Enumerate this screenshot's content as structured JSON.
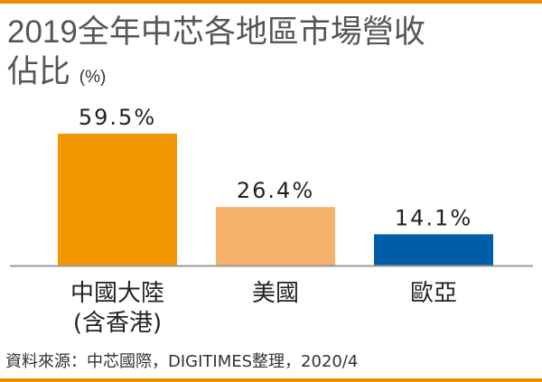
{
  "chart_data": {
    "type": "bar",
    "title_line1": "2019全年中芯各地區市場營收",
    "title_line2": "佔比",
    "unit": "(%)",
    "categories": [
      [
        "中國大陸",
        "(含香港)"
      ],
      [
        "美國"
      ],
      [
        "歐亞"
      ]
    ],
    "values": [
      59.5,
      26.4,
      14.1
    ],
    "data_labels": [
      "59.5%",
      "26.4%",
      "14.1%"
    ],
    "colors": [
      "#f39800",
      "#f5b06c",
      "#005ea8"
    ],
    "ylim": [
      0,
      65
    ],
    "grid": false
  },
  "source": "資料來源：中芯國際，DIGITIMES整理，2020/4",
  "accent_color": "#f08c00"
}
